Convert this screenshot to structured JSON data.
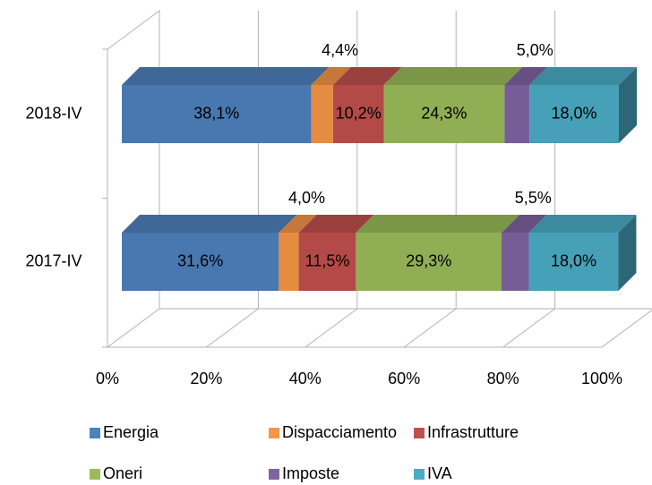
{
  "chart_data": {
    "type": "bar3d_stacked_horizontal",
    "categories": [
      "2018-IV",
      "2017-IV"
    ],
    "series": [
      {
        "name": "Energia",
        "color": "#4f81bd",
        "values": [
          38.1,
          31.6
        ],
        "value_labels": [
          "38,1%",
          "31,6%"
        ]
      },
      {
        "name": "Dispacciamento",
        "color": "#f79646",
        "values": [
          4.4,
          4.0
        ],
        "value_labels": [
          "4,4%",
          "4,0%"
        ]
      },
      {
        "name": "Infrastrutture",
        "color": "#c0504d",
        "values": [
          10.2,
          11.5
        ],
        "value_labels": [
          "10,2%",
          "11,5%"
        ]
      },
      {
        "name": "Oneri",
        "color": "#9bbb59",
        "values": [
          24.3,
          29.3
        ],
        "value_labels": [
          "24,3%",
          "29,3%"
        ]
      },
      {
        "name": "Imposte",
        "color": "#8064a2",
        "values": [
          5.0,
          5.5
        ],
        "value_labels": [
          "5,0%",
          "5,5%"
        ]
      },
      {
        "name": "IVA",
        "color": "#4bacc6",
        "values": [
          18.0,
          18.0
        ],
        "value_labels": [
          "18,0%",
          "18,0%"
        ]
      }
    ],
    "xlim": [
      0,
      100
    ],
    "xticks": [
      {
        "value": 0,
        "label": "0%"
      },
      {
        "value": 20,
        "label": "20%"
      },
      {
        "value": 40,
        "label": "40%"
      },
      {
        "value": 60,
        "label": "60%"
      },
      {
        "value": 80,
        "label": "80%"
      },
      {
        "value": 100,
        "label": "100%"
      }
    ],
    "grid": true,
    "legend": "bottom"
  }
}
